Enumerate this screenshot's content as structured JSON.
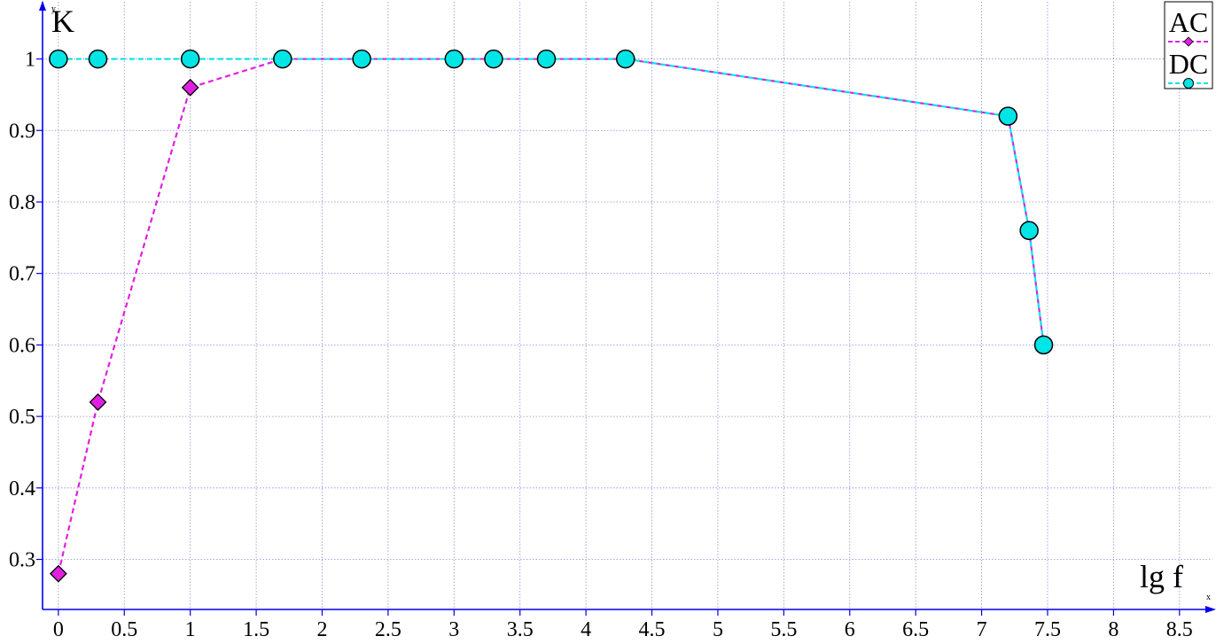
{
  "chart_data": {
    "type": "line",
    "xlabel": "lg f",
    "ylabel": "K",
    "x_axis_mark": "x",
    "y_axis_mark": "y",
    "xlim": [
      -0.12,
      8.75
    ],
    "ylim": [
      0.23,
      1.08
    ],
    "x_ticks": [
      0,
      0.5,
      1,
      1.5,
      2,
      2.5,
      3,
      3.5,
      4,
      4.5,
      5,
      5.5,
      6,
      6.5,
      7,
      7.5,
      8,
      8.5
    ],
    "y_ticks": [
      0.3,
      0.4,
      0.5,
      0.6,
      0.7,
      0.8,
      0.9,
      1
    ],
    "grid": true,
    "legend_position": "top-right",
    "series": [
      {
        "name": "AC",
        "color": "#e020e0",
        "marker": "diamond",
        "line_style": "dashed",
        "points": [
          [
            0,
            0.28
          ],
          [
            0.3,
            0.52
          ],
          [
            1,
            0.96
          ],
          [
            1.7,
            1
          ],
          [
            2.3,
            1
          ],
          [
            3,
            1
          ],
          [
            3.3,
            1
          ],
          [
            3.7,
            1
          ],
          [
            4.3,
            1
          ],
          [
            7.2,
            0.92
          ],
          [
            7.36,
            0.76
          ],
          [
            7.47,
            0.6
          ]
        ]
      },
      {
        "name": "DC",
        "color": "#00e5e5",
        "marker": "circle",
        "line_style": "dashed",
        "points": [
          [
            0,
            1
          ],
          [
            0.3,
            1
          ],
          [
            1,
            1
          ],
          [
            1.7,
            1
          ],
          [
            2.3,
            1
          ],
          [
            3,
            1
          ],
          [
            3.3,
            1
          ],
          [
            3.7,
            1
          ],
          [
            4.3,
            1
          ],
          [
            7.2,
            0.92
          ],
          [
            7.36,
            0.76
          ],
          [
            7.47,
            0.6
          ]
        ]
      }
    ]
  }
}
